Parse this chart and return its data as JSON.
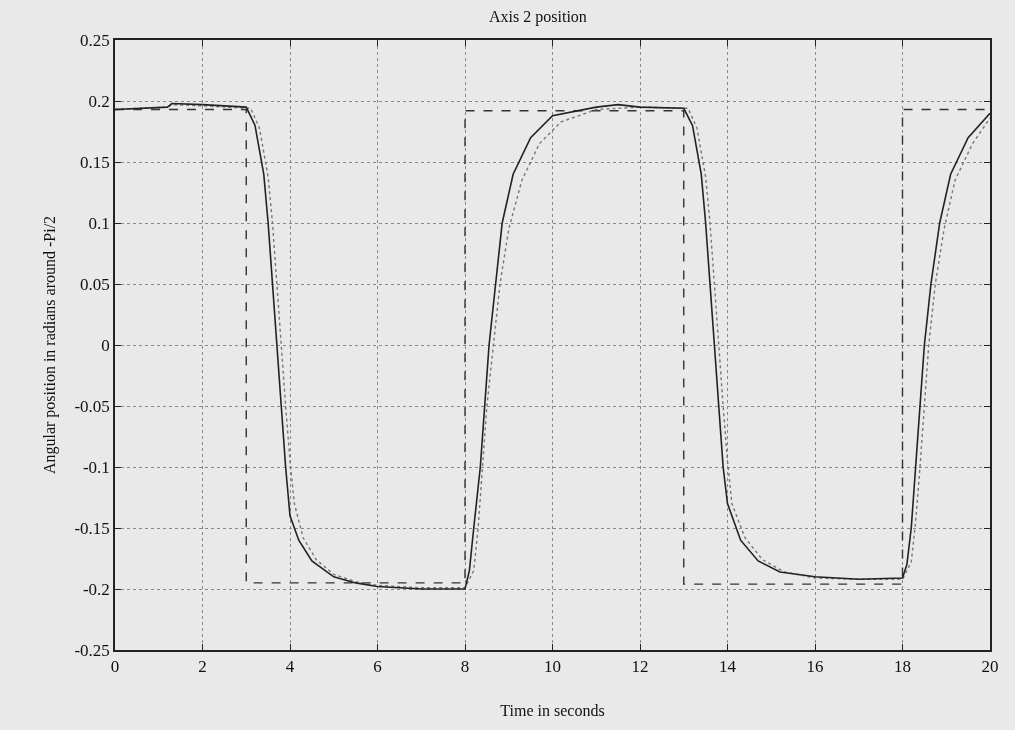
{
  "chart_data": {
    "type": "line",
    "title": "Axis 2 position",
    "xlabel": "Time in seconds",
    "ylabel": "Angular position in radians around -Pi/2",
    "xlim": [
      0,
      20
    ],
    "xticks": [
      0,
      2,
      4,
      6,
      8,
      10,
      12,
      14,
      16,
      18,
      20
    ],
    "ylim": [
      -0.25,
      0.25
    ],
    "yticks": [
      -0.25,
      -0.2,
      -0.15,
      -0.1,
      -0.05,
      0,
      0.05,
      0.1,
      0.15,
      0.2,
      0.25
    ],
    "grid": true,
    "series": [
      {
        "color": "#333333",
        "line_style": "dashed",
        "x": [
          0,
          3,
          3,
          8,
          8,
          13,
          13,
          18,
          18,
          20
        ],
        "values": [
          0.193,
          0.193,
          -0.195,
          -0.195,
          0.192,
          0.192,
          -0.196,
          -0.196,
          0.193,
          0.193
        ]
      },
      {
        "color": "#777777",
        "line_style": "dotted",
        "x": [
          0,
          1.2,
          1.3,
          2,
          3.1,
          3.3,
          3.5,
          3.6,
          3.7,
          3.8,
          3.9,
          4.0,
          4.1,
          4.3,
          4.6,
          5.0,
          5.5,
          6,
          7,
          8.0,
          8.2,
          8.3,
          8.4,
          8.5,
          8.65,
          8.8,
          9.0,
          9.3,
          9.7,
          10.2,
          11,
          12,
          13.1,
          13.3,
          13.5,
          13.6,
          13.7,
          13.8,
          13.9,
          14.0,
          14.1,
          14.4,
          14.8,
          15.3,
          16,
          17,
          18.0,
          18.2,
          18.3,
          18.4,
          18.5,
          18.6,
          18.75,
          18.95,
          19.2,
          19.6,
          20
        ],
        "values": [
          0.193,
          0.195,
          0.197,
          0.196,
          0.194,
          0.178,
          0.138,
          0.1,
          0.05,
          0.0,
          -0.05,
          -0.095,
          -0.13,
          -0.158,
          -0.176,
          -0.188,
          -0.194,
          -0.197,
          -0.199,
          -0.199,
          -0.185,
          -0.15,
          -0.1,
          -0.05,
          0.0,
          0.05,
          0.095,
          0.135,
          0.165,
          0.183,
          0.193,
          0.195,
          0.194,
          0.178,
          0.138,
          0.1,
          0.05,
          0.0,
          -0.05,
          -0.095,
          -0.13,
          -0.158,
          -0.176,
          -0.186,
          -0.191,
          -0.192,
          -0.192,
          -0.178,
          -0.145,
          -0.1,
          -0.05,
          0.0,
          0.05,
          0.095,
          0.135,
          0.165,
          0.186
        ]
      },
      {
        "color": "#222222",
        "line_style": "solid",
        "x": [
          0,
          1.2,
          1.3,
          2,
          3,
          3.2,
          3.4,
          3.5,
          3.6,
          3.7,
          3.8,
          3.9,
          4.0,
          4.2,
          4.5,
          5,
          5.5,
          6,
          7,
          8,
          8.1,
          8.2,
          8.35,
          8.45,
          8.55,
          8.7,
          8.85,
          9.1,
          9.5,
          10,
          11,
          11.5,
          12,
          13,
          13.2,
          13.4,
          13.5,
          13.6,
          13.7,
          13.8,
          13.9,
          14,
          14.3,
          14.7,
          15.2,
          16,
          17,
          18,
          18.1,
          18.2,
          18.3,
          18.4,
          18.5,
          18.65,
          18.85,
          19.1,
          19.5,
          20
        ],
        "values": [
          0.193,
          0.195,
          0.198,
          0.197,
          0.195,
          0.18,
          0.14,
          0.1,
          0.05,
          0.0,
          -0.05,
          -0.1,
          -0.14,
          -0.16,
          -0.177,
          -0.19,
          -0.195,
          -0.198,
          -0.2,
          -0.2,
          -0.185,
          -0.15,
          -0.1,
          -0.05,
          0.0,
          0.05,
          0.1,
          0.14,
          0.17,
          0.188,
          0.195,
          0.197,
          0.195,
          0.194,
          0.18,
          0.14,
          0.1,
          0.05,
          0.0,
          -0.05,
          -0.1,
          -0.13,
          -0.16,
          -0.177,
          -0.186,
          -0.19,
          -0.192,
          -0.191,
          -0.18,
          -0.15,
          -0.1,
          -0.05,
          0.0,
          0.05,
          0.1,
          0.14,
          0.17,
          0.19
        ]
      }
    ]
  }
}
